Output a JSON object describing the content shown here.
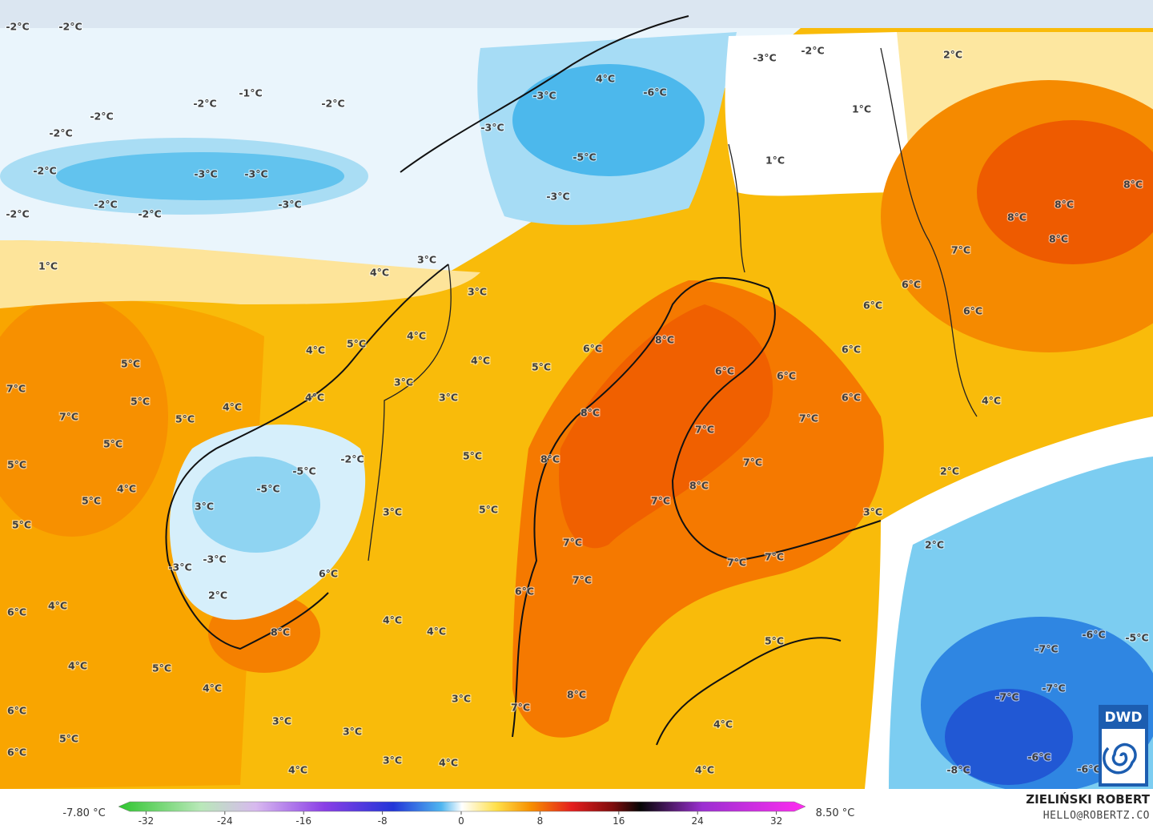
{
  "map": {
    "labels": [
      "-2°C",
      "-2°C",
      "-1°C",
      "-2°C",
      "-2°C",
      "-2°C",
      "-2°C",
      "-2°C",
      "-3°C",
      "-3°C",
      "-2°C",
      "-2°C",
      "-2°C",
      "-3°C",
      "1°C",
      "-3°C",
      "-2°C",
      "2°C",
      "4°C",
      "-6°C",
      "-3°C",
      "-3°C",
      "1°C",
      "-5°C",
      "1°C",
      "-3°C",
      "8°C",
      "8°C",
      "8°C",
      "8°C",
      "3°C",
      "7°C",
      "4°C",
      "3°C",
      "6°C",
      "6°C",
      "6°C",
      "4°C",
      "5°C",
      "8°C",
      "6°C",
      "4°C",
      "6°C",
      "4°C",
      "5°C",
      "5°C",
      "6°C",
      "6°C",
      "3°C",
      "7°C",
      "4°C",
      "5°C",
      "3°C",
      "6°C",
      "4°C",
      "8°C",
      "7°C",
      "5°C",
      "7°C",
      "4°C",
      "7°C",
      "5°C",
      "5°C",
      "8°C",
      "-2°C",
      "7°C",
      "-5°C",
      "5°C",
      "2°C",
      "4°C",
      "-5°C",
      "8°C",
      "5°C",
      "7°C",
      "3°C",
      "5°C",
      "3°C",
      "3°C",
      "5°C",
      "2°C",
      "7°C",
      "-3°C",
      "7°C",
      "7°C",
      "-3°C",
      "6°C",
      "7°C",
      "6°C",
      "2°C",
      "4°C",
      "6°C",
      "4°C",
      "8°C",
      "4°C",
      "-7°C",
      "-6°C",
      "-5°C",
      "5°C",
      "4°C",
      "5°C",
      "4°C",
      "-7°C",
      "8°C",
      "-7°C",
      "3°C",
      "7°C",
      "6°C",
      "3°C",
      "4°C",
      "3°C",
      "5°C",
      "3°C",
      "6°C",
      "-6°C",
      "4°C",
      "-6°C",
      "-8°C",
      "4°C",
      "4°C"
    ]
  },
  "legend": {
    "min_label": "-7.80 °C",
    "max_label": "8.50 °C",
    "ticks": [
      -32,
      -24,
      -16,
      -8,
      0,
      8,
      16,
      24,
      32
    ]
  },
  "credit": {
    "author": "ZIELIŃSKI ROBERT",
    "email": "HELLO@ROBERTZ.CO",
    "logo": "DWD"
  }
}
